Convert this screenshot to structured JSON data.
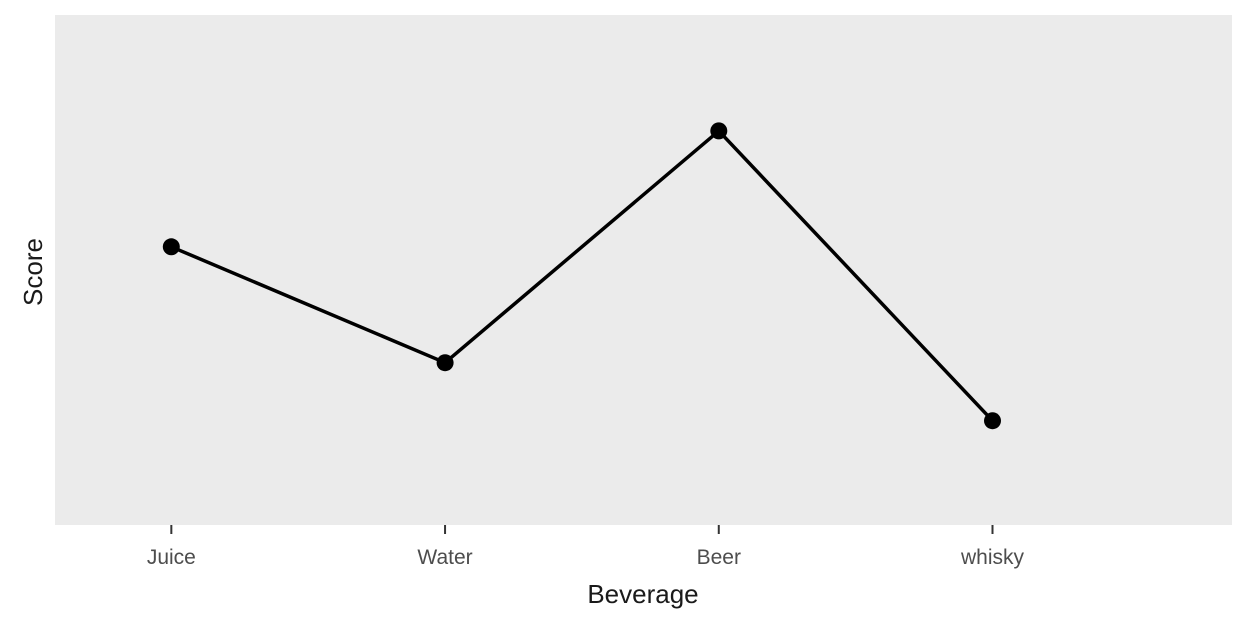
{
  "chart_data": {
    "type": "line",
    "categories": [
      "Juice",
      "Water",
      "Beer",
      "whisky"
    ],
    "series": [
      {
        "values": [
          6,
          4,
          8,
          3
        ]
      }
    ],
    "title": "",
    "xlabel": "Beverage",
    "ylabel": "Score",
    "ylim": [
      1.2,
      10.0
    ],
    "grid": false,
    "legend": "none",
    "colors": {
      "panel_background": "#ebebeb",
      "line": "#000000",
      "point": "#000000",
      "tick_mark": "#333333",
      "tick_label": "#4d4d4d",
      "axis_title": "#1a1a1a"
    }
  }
}
